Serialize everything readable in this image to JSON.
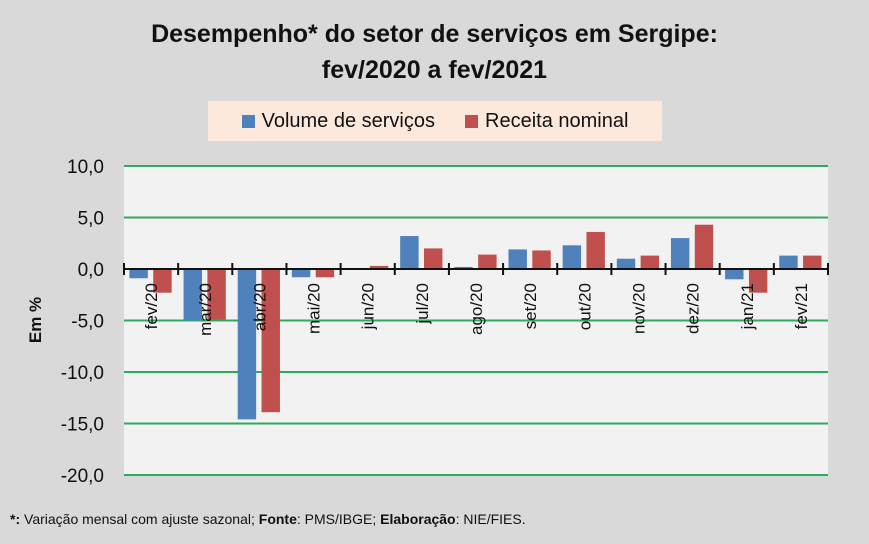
{
  "chart_data": {
    "type": "bar",
    "title": "Desempenho* do setor de serviços em Sergipe:",
    "subtitle": "fev/2020 a fev/2021",
    "xlabel": "",
    "ylabel": "Em %",
    "ylim": [
      -20,
      10
    ],
    "yticks": [
      10,
      5,
      0,
      -5,
      -10,
      -15,
      -20
    ],
    "ytick_labels": [
      "10,0",
      "5,0",
      "0,0",
      "-5,0",
      "-10,0",
      "-15,0",
      "-20,0"
    ],
    "grid": true,
    "legend_position": "top-center",
    "categories": [
      "fev/20",
      "mar/20",
      "abr/20",
      "mai/20",
      "jun/20",
      "jul/20",
      "ago/20",
      "set/20",
      "out/20",
      "nov/20",
      "dez/20",
      "jan/21",
      "fev/21"
    ],
    "series": [
      {
        "name": "Volume de serviços",
        "color": "#4f81bd",
        "values": [
          -0.9,
          -5.0,
          -14.6,
          -0.8,
          0.1,
          3.2,
          0.2,
          1.9,
          2.3,
          1.0,
          3.0,
          -1.0,
          1.3
        ]
      },
      {
        "name": "Receita nominal",
        "color": "#c0504d",
        "values": [
          -2.3,
          -4.9,
          -13.9,
          -0.8,
          0.3,
          2.0,
          1.4,
          1.8,
          3.6,
          1.3,
          4.3,
          -2.3,
          1.3
        ]
      }
    ]
  },
  "colors": {
    "background": "#d9d9d9",
    "plot_background": "#f2f2f2",
    "gridline": "#2eaa5c",
    "legend_background": "#fce9dc"
  },
  "footnote": {
    "marker": "*:",
    "text1": " Variação mensal com ajuste sazonal; ",
    "fonte_label": "Fonte",
    "fonte_value": ": PMS/IBGE; ",
    "elab_label": "Elaboração",
    "elab_value": ": NIE/FIES."
  }
}
